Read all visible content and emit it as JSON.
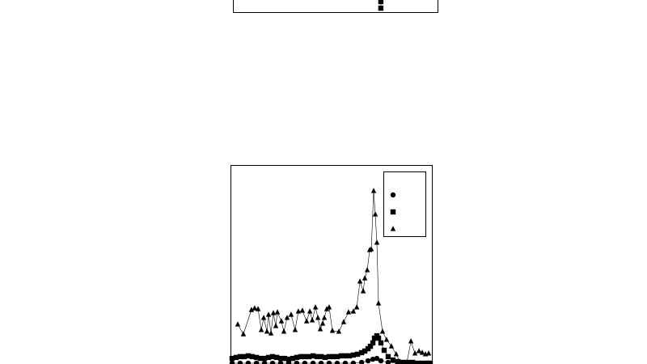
{
  "chart_data": [
    {
      "type": "line",
      "xlim": [
        0,
        100
      ],
      "ylim": [
        0,
        100
      ],
      "series": [
        {
          "color": "#000000",
          "marker": "square",
          "x": [
            72.3,
            72.3
          ],
          "values": [
            5.3,
            2.0
          ]
        }
      ]
    },
    {
      "type": "line",
      "xlim": [
        0,
        100
      ],
      "ylim": [
        0,
        100
      ],
      "legend": "upper right",
      "series": [
        {
          "color": "#000000",
          "marker": "circle",
          "x": [
            0.8,
            4.8,
            8.8,
            12.9,
            16.9,
            20.9,
            24.9,
            28.9,
            32.9,
            36.9,
            41.0,
            45.0,
            49.0,
            53.0,
            57.0,
            61.0,
            65.1,
            68.3,
            70.7,
            72.7,
            74.7,
            78.3,
            83.1,
            88.0,
            92.8,
            97.6
          ],
          "values": [
            0.4,
            0.4,
            0.4,
            0.4,
            0.4,
            0.4,
            0.4,
            0.4,
            0.4,
            0.4,
            0.4,
            0.4,
            0.4,
            0.4,
            0.4,
            0.4,
            0.8,
            1.6,
            2.4,
            2.8,
            1.6,
            0.8,
            0.4,
            0.4,
            0.4,
            0.4
          ]
        },
        {
          "color": "#000000",
          "marker": "square",
          "x": [
            0.8,
            2.8,
            4.8,
            6.8,
            8.8,
            10.8,
            12.9,
            14.9,
            16.9,
            18.9,
            20.9,
            22.9,
            24.9,
            26.9,
            28.9,
            30.9,
            32.9,
            34.9,
            36.9,
            39.0,
            41.0,
            43.0,
            45.0,
            47.0,
            49.0,
            51.0,
            53.0,
            55.0,
            57.0,
            59.0,
            61.0,
            63.1,
            65.1,
            66.7,
            68.3,
            69.5,
            70.7,
            71.5,
            72.7,
            73.5,
            74.7,
            76.3,
            78.3,
            80.7,
            83.1,
            85.5,
            88.0,
            90.4,
            92.8,
            95.2,
            97.6,
            99.2
          ],
          "values": [
            2.8,
            3.3,
            3.7,
            3.7,
            4.1,
            3.7,
            3.3,
            2.8,
            2.8,
            3.3,
            3.7,
            3.3,
            2.8,
            2.8,
            2.4,
            2.8,
            3.3,
            3.7,
            3.7,
            3.7,
            4.1,
            3.7,
            3.7,
            3.3,
            3.7,
            3.7,
            3.7,
            4.1,
            4.1,
            4.1,
            4.5,
            4.9,
            5.7,
            6.5,
            7.7,
            8.9,
            10.6,
            13.0,
            14.2,
            13.0,
            10.6,
            6.9,
            3.7,
            2.0,
            1.2,
            0.8,
            0.8,
            0.8,
            0.4,
            0.4,
            0.4,
            0.4
          ]
        },
        {
          "color": "#000000",
          "marker": "triangle",
          "x": [
            3.6,
            6.4,
            10.4,
            12.0,
            13.7,
            15.3,
            16.5,
            18.1,
            18.9,
            20.1,
            21.3,
            22.5,
            23.3,
            25.3,
            26.5,
            28.1,
            30.1,
            32.1,
            33.7,
            35.7,
            37.8,
            39.4,
            40.6,
            42.2,
            43.4,
            44.6,
            45.8,
            46.6,
            47.8,
            49.0,
            50.6,
            53.8,
            56.2,
            58.6,
            61.0,
            62.7,
            64.3,
            65.9,
            66.7,
            67.9,
            69.1,
            69.9,
            71.1,
            71.9,
            72.7,
            73.5,
            75.5,
            77.5,
            79.9,
            82.3,
            84.3,
            87.6,
            89.6,
            91.6,
            93.6,
            95.2,
            96.8,
            98.4
          ],
          "values": [
            19.9,
            15.0,
            27.2,
            28.0,
            27.6,
            17.1,
            23.2,
            16.3,
            24.8,
            15.4,
            25.6,
            19.1,
            26.0,
            21.5,
            16.3,
            23.2,
            24.8,
            17.1,
            26.4,
            26.8,
            21.5,
            26.4,
            22.0,
            28.5,
            23.2,
            17.5,
            20.3,
            23.2,
            27.6,
            28.5,
            16.7,
            16.3,
            21.1,
            26.0,
            26.4,
            28.5,
            41.5,
            36.6,
            43.1,
            47.2,
            57.3,
            57.7,
            87.0,
            75.2,
            61.0,
            30.5,
            16.3,
            12.2,
            8.9,
            4.9,
            0.8,
            0.8,
            11.4,
            5.3,
            6.5,
            5.7,
            4.9,
            5.3
          ]
        }
      ]
    }
  ]
}
